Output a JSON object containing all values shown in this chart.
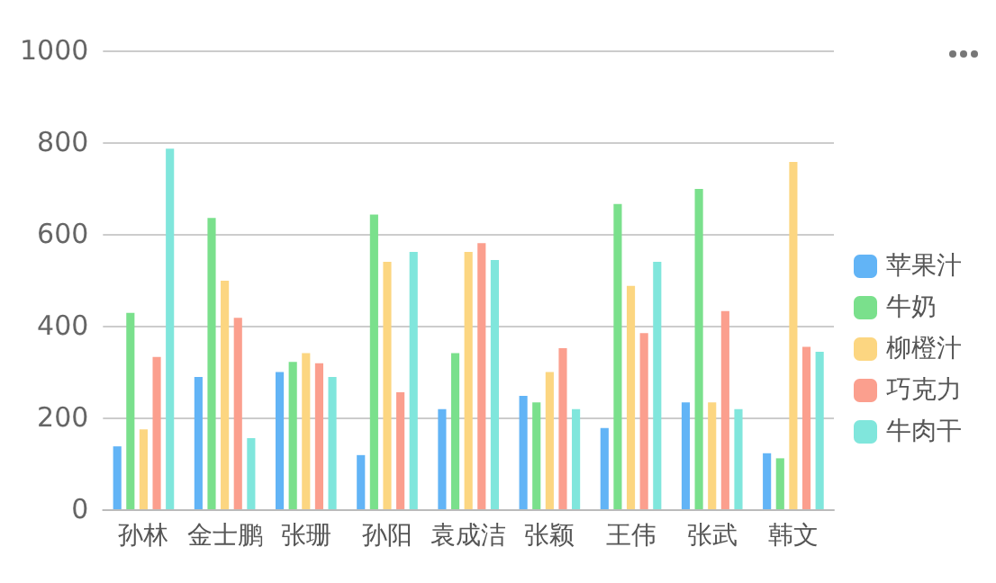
{
  "chart_data": {
    "type": "bar",
    "categories": [
      "孙林",
      "金士鹏",
      "张珊",
      "孙阳",
      "袁成洁",
      "张颖",
      "王伟",
      "张武",
      "韩文"
    ],
    "series": [
      {
        "name": "苹果汁",
        "color": "#62b4f6",
        "values": [
          137,
          288,
          299,
          118,
          218,
          247,
          177,
          233,
          122
        ]
      },
      {
        "name": "牛奶",
        "color": "#7ae08c",
        "values": [
          428,
          635,
          321,
          642,
          340,
          233,
          665,
          698,
          111
        ]
      },
      {
        "name": "柳橙汁",
        "color": "#fcd681",
        "values": [
          174,
          498,
          340,
          539,
          561,
          299,
          487,
          233,
          757
        ]
      },
      {
        "name": "巧克力",
        "color": "#fb9f8e",
        "values": [
          332,
          417,
          318,
          255,
          580,
          351,
          384,
          432,
          354
        ]
      },
      {
        "name": "牛肉干",
        "color": "#80e6dc",
        "values": [
          786,
          155,
          288,
          561,
          543,
          218,
          539,
          218,
          343
        ]
      }
    ],
    "ylim": [
      0,
      1000
    ],
    "yticks": [
      0,
      200,
      400,
      600,
      800,
      1000
    ],
    "grid": "y",
    "legend": "right"
  }
}
